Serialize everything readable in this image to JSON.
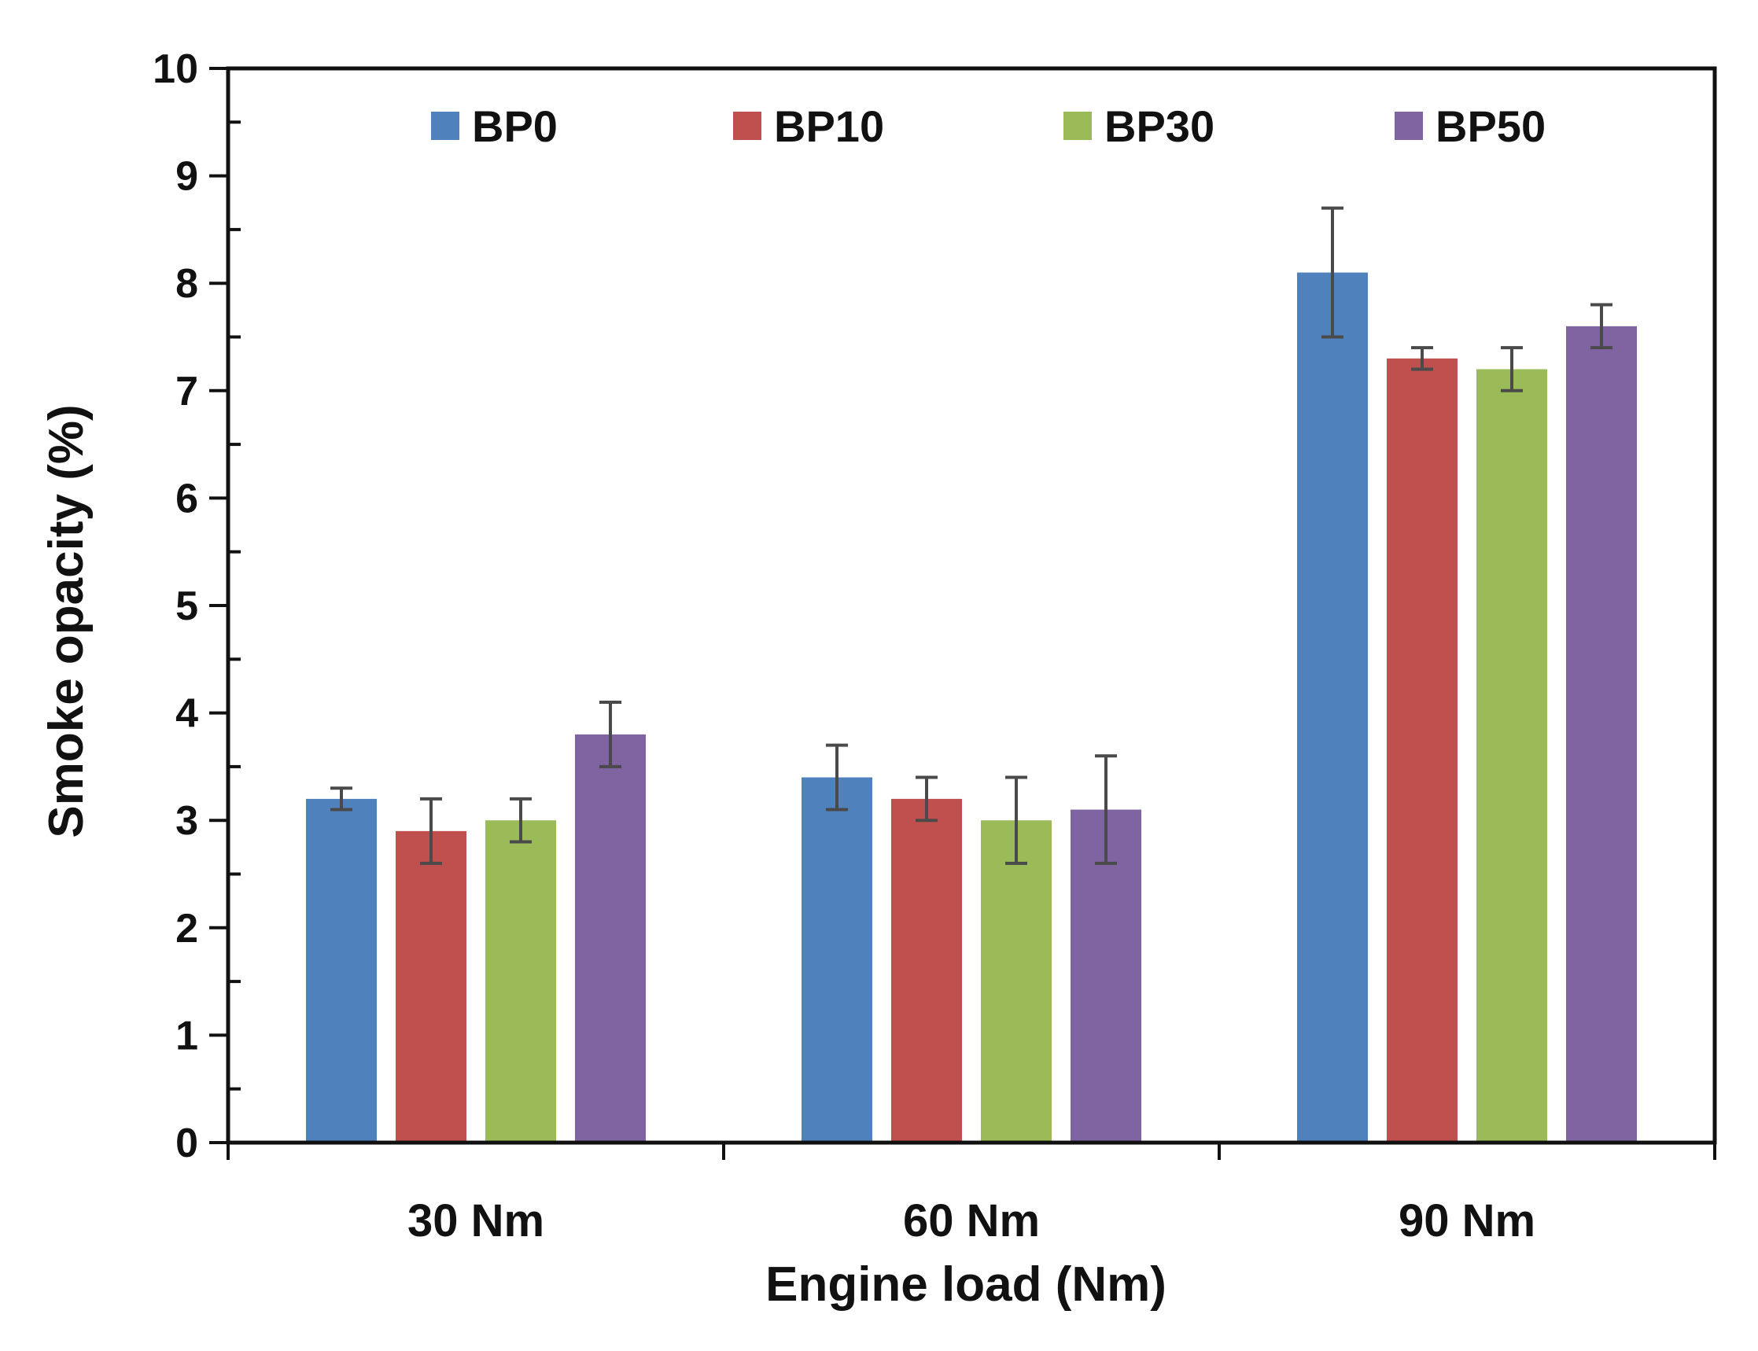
{
  "chart_data": {
    "type": "bar",
    "title": "",
    "xlabel": "Engine load (Nm)",
    "ylabel": "Smoke opacity (%)",
    "ylim": [
      0,
      10
    ],
    "y_major_step": 1,
    "y_minor_step": 0.5,
    "y_ticks": [
      "0",
      "1",
      "2",
      "3",
      "4",
      "5",
      "6",
      "7",
      "8",
      "9",
      "10"
    ],
    "grid": false,
    "legend_position": "top",
    "categories": [
      "30 Nm",
      "60 Nm",
      "90 Nm"
    ],
    "series": [
      {
        "name": "BP0",
        "color": "#4F81BD",
        "values": [
          3.2,
          3.4,
          8.1
        ],
        "errors": [
          0.1,
          0.3,
          0.6
        ]
      },
      {
        "name": "BP10",
        "color": "#C0504D",
        "values": [
          2.9,
          3.2,
          7.3
        ],
        "errors": [
          0.3,
          0.2,
          0.1
        ]
      },
      {
        "name": "BP30",
        "color": "#9BBB59",
        "values": [
          3.0,
          3.0,
          7.2
        ],
        "errors": [
          0.2,
          0.4,
          0.2
        ]
      },
      {
        "name": "BP50",
        "color": "#8064A2",
        "values": [
          3.8,
          3.1,
          7.6
        ],
        "errors": [
          0.3,
          0.5,
          0.2
        ]
      }
    ]
  }
}
